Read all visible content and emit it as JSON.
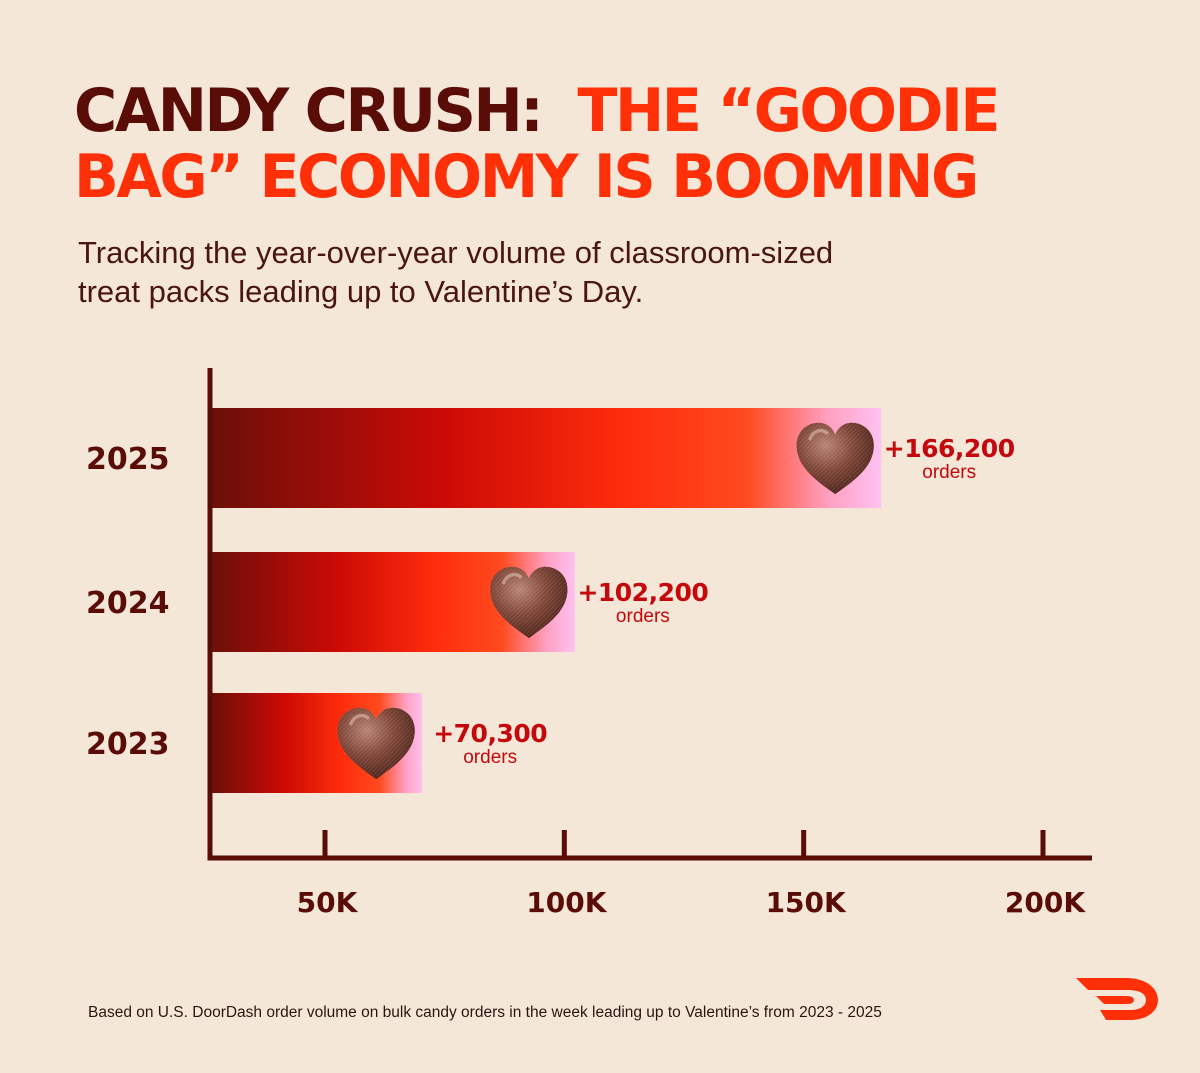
{
  "header": {
    "title_part1": "CANDY CRUSH:",
    "title_part2": "THE “GOODIE BAG” ECONOMY IS BOOMING",
    "subtitle": "Tracking the year-over-year volume of classroom-sized treat packs leading up to Valentine’s Day."
  },
  "chart_data": {
    "type": "bar",
    "orientation": "horizontal",
    "categories": [
      "2025",
      "2024",
      "2023"
    ],
    "values": [
      166200,
      102200,
      70300
    ],
    "value_labels": [
      "+166,200",
      "+102,200",
      "+70,300"
    ],
    "value_unit": "orders",
    "x_ticks": [
      50000,
      100000,
      150000,
      200000
    ],
    "x_tick_labels": [
      "50K",
      "100K",
      "150K",
      "200K"
    ],
    "grid": false,
    "colors": {
      "bar_gradient": [
        "#6b0f0a",
        "#cc0a05",
        "#ff2d0d",
        "#ff4a1f",
        "#ff9fc0",
        "#ffc2f2"
      ],
      "axis": "#5a0d07",
      "category_label": "#5a0d07",
      "value_label": "#c4080c"
    },
    "mark_icon": "chocolate-heart-icon"
  },
  "footer": {
    "note": "Based on U.S. DoorDash order volume on bulk candy orders in the week leading up to Valentine’s from 2023 - 2025",
    "logo_icon": "doordash-logo-icon"
  },
  "colors": {
    "background": "#f4e7d8",
    "title_dark": "#5a0d07",
    "title_accent": "#ff3008",
    "brand": "#ff3008"
  }
}
